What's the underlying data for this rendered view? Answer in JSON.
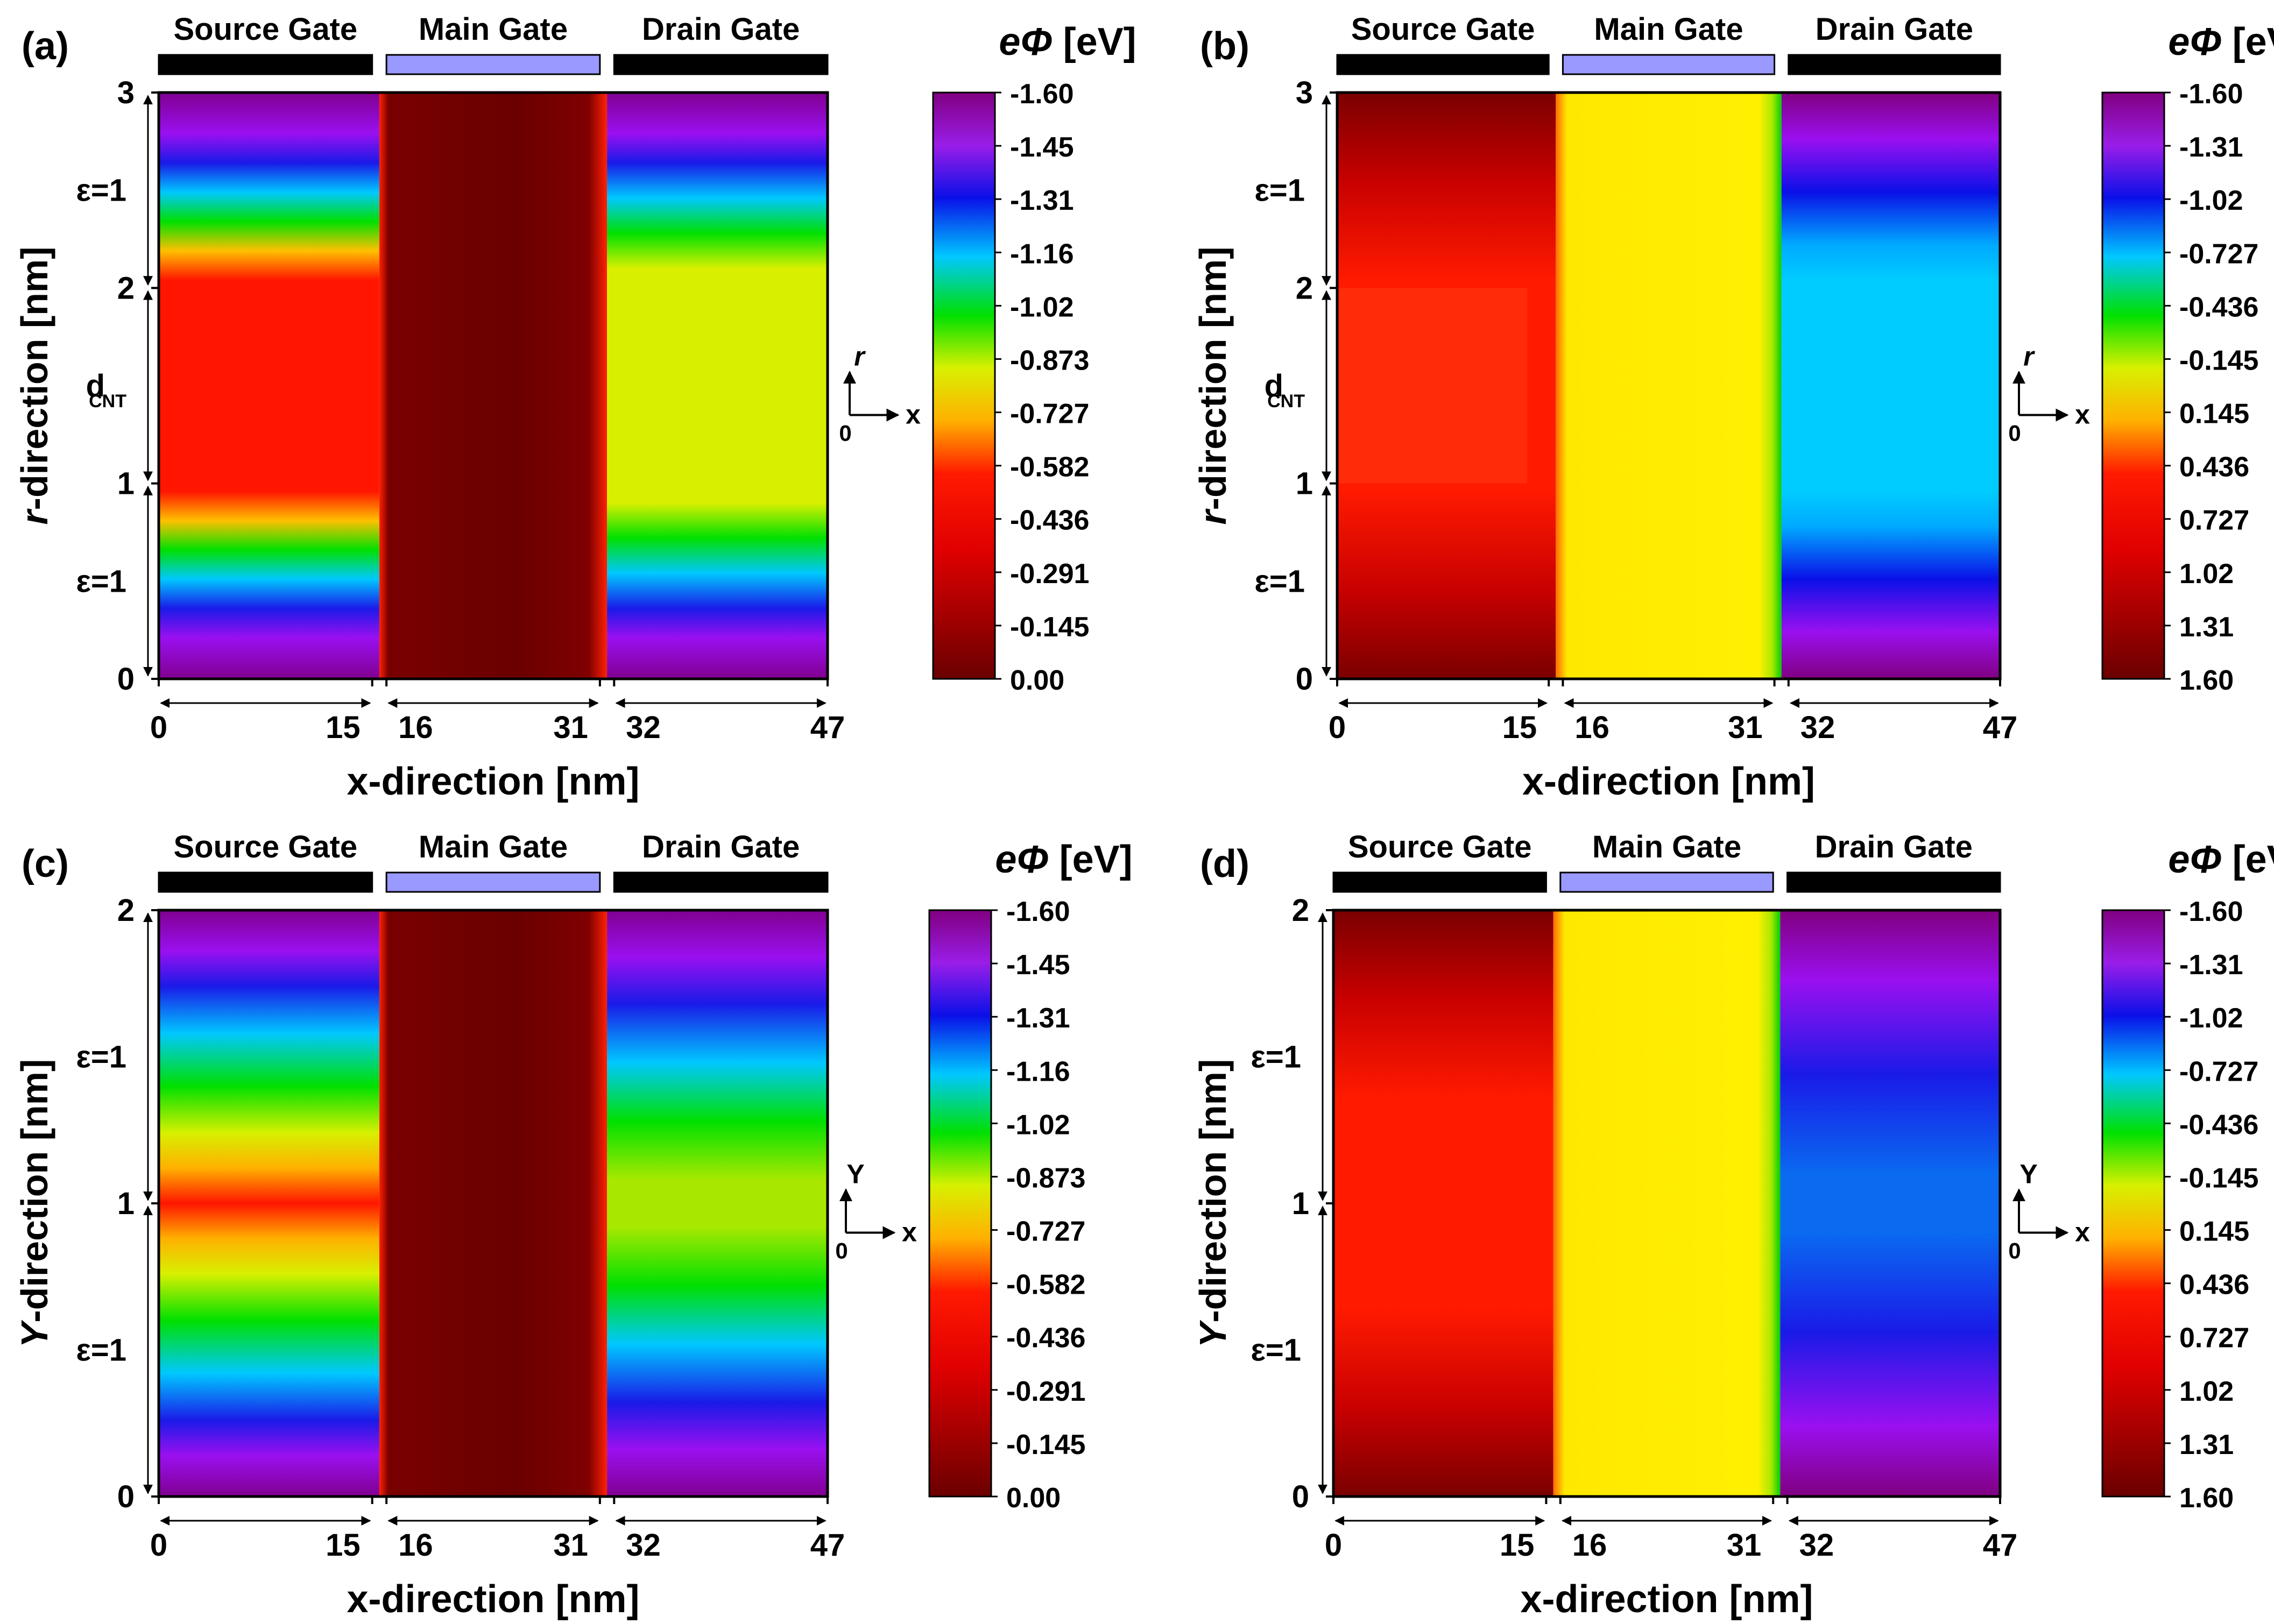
{
  "chart_data": {
    "shared": {
      "gates": [
        "Source Gate",
        "Main Gate",
        "Drain Gate"
      ],
      "x_ticks": [
        "0",
        "15",
        "16",
        "31",
        "32",
        "47"
      ],
      "x_range_nm": [
        0,
        47
      ],
      "gate_regions_nm": [
        [
          0,
          15
        ],
        [
          16,
          31
        ],
        [
          32,
          47
        ]
      ],
      "xlabel": "x-direction [nm]",
      "colorbar_unit": "[eV]",
      "colorbar_title_italic": "eΦ",
      "axis_x": "x",
      "axis_origin": "0"
    },
    "panels": [
      {
        "label": "(a)",
        "type": "heatmap",
        "ylabel_italic": "r",
        "ylabel_rest": "-direction [nm]",
        "y_ticks": [
          "0",
          "1",
          "2",
          "3"
        ],
        "ylim": [
          0,
          3
        ],
        "y_annotations": [
          "ε=1",
          "d",
          "ε=1"
        ],
        "d_subscript": "CNT",
        "axis_y": "r",
        "colorbar_ticks": [
          "-1.60",
          "-1.45",
          "-1.31",
          "-1.16",
          "-1.02",
          "-0.873",
          "-0.727",
          "-0.582",
          "-0.436",
          "-0.291",
          "-0.145",
          "0.00"
        ],
        "colorbar_range": [
          -1.6,
          0.0
        ]
      },
      {
        "label": "(b)",
        "type": "heatmap",
        "ylabel_italic": "r",
        "ylabel_rest": "-direction [nm]",
        "y_ticks": [
          "0",
          "1",
          "2",
          "3"
        ],
        "ylim": [
          0,
          3
        ],
        "y_annotations": [
          "ε=1",
          "d",
          "ε=1"
        ],
        "d_subscript": "CNT",
        "axis_y": "r",
        "colorbar_ticks": [
          "-1.60",
          "-1.31",
          "-1.02",
          "-0.727",
          "-0.436",
          "-0.145",
          "0.145",
          "0.436",
          "0.727",
          "1.02",
          "1.31",
          "1.60"
        ],
        "colorbar_range": [
          -1.6,
          1.6
        ]
      },
      {
        "label": "(c)",
        "type": "heatmap",
        "ylabel_italic": "Y",
        "ylabel_rest": "-direction [nm]",
        "y_ticks": [
          "0",
          "1",
          "2"
        ],
        "ylim": [
          0,
          2
        ],
        "y_annotations": [
          "ε=1",
          "ε=1"
        ],
        "d_subscript": "",
        "axis_y": "Y",
        "colorbar_ticks": [
          "-1.60",
          "-1.45",
          "-1.31",
          "-1.16",
          "-1.02",
          "-0.873",
          "-0.727",
          "-0.582",
          "-0.436",
          "-0.291",
          "-0.145",
          "0.00"
        ],
        "colorbar_range": [
          -1.6,
          0.0
        ]
      },
      {
        "label": "(d)",
        "type": "heatmap",
        "ylabel_italic": "Y",
        "ylabel_rest": "-direction [nm]",
        "y_ticks": [
          "0",
          "1",
          "2"
        ],
        "ylim": [
          0,
          2
        ],
        "y_annotations": [
          "ε=1",
          "ε=1"
        ],
        "d_subscript": "",
        "axis_y": "Y",
        "colorbar_ticks": [
          "-1.60",
          "-1.31",
          "-1.02",
          "-0.727",
          "-0.436",
          "-0.145",
          "0.145",
          "0.436",
          "0.727",
          "1.02",
          "1.31",
          "1.60"
        ],
        "colorbar_range": [
          -1.6,
          1.6
        ]
      }
    ]
  }
}
